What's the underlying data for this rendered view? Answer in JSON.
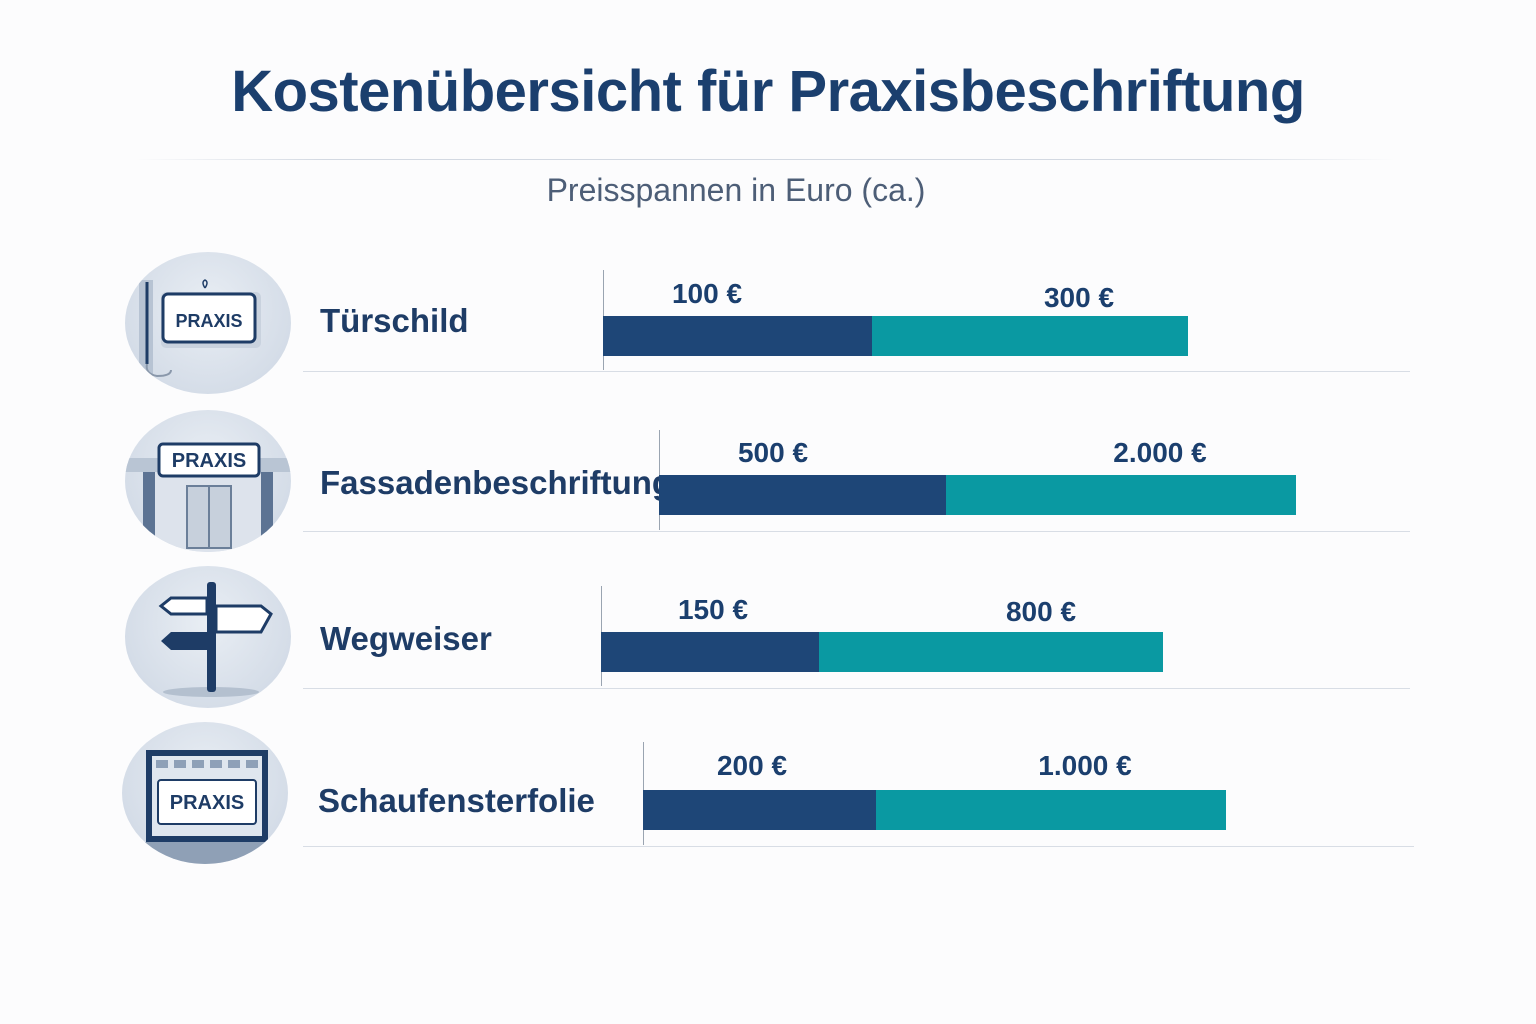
{
  "title": "Kostenübersicht für Praxisbeschriftung",
  "subtitle": "Preisspannen in Euro (ca.)",
  "colors": {
    "min_bar": "#1e4677",
    "max_bar": "#0a99a2",
    "text": "#1b3f6e"
  },
  "chart_data": {
    "type": "bar",
    "orientation": "horizontal-range",
    "categories": [
      "Türschild",
      "Fassadenbeschriftung",
      "Wegweiser",
      "Schaufensterfolie"
    ],
    "series": [
      {
        "name": "",
        "values": [
          100,
          500,
          150,
          200
        ]
      },
      {
        "name": "",
        "values": [
          300,
          2000,
          800,
          1000
        ]
      }
    ],
    "value_labels": [
      {
        "min": "100 €",
        "max": "300 €"
      },
      {
        "min": "500 €",
        "max": "2.000 €"
      },
      {
        "min": "150 €",
        "max": "800 €"
      },
      {
        "min": "200 €",
        "max": "1.000 €"
      }
    ],
    "icons": [
      "door-sign-icon",
      "facade-sign-icon",
      "signpost-icon",
      "shop-window-icon"
    ],
    "icon_text": "PRAXIS",
    "title": "Kostenübersicht für Praxisbeschriftung",
    "subtitle": "Preisspannen in Euro (ca.)",
    "grid": false,
    "legend": "none"
  }
}
